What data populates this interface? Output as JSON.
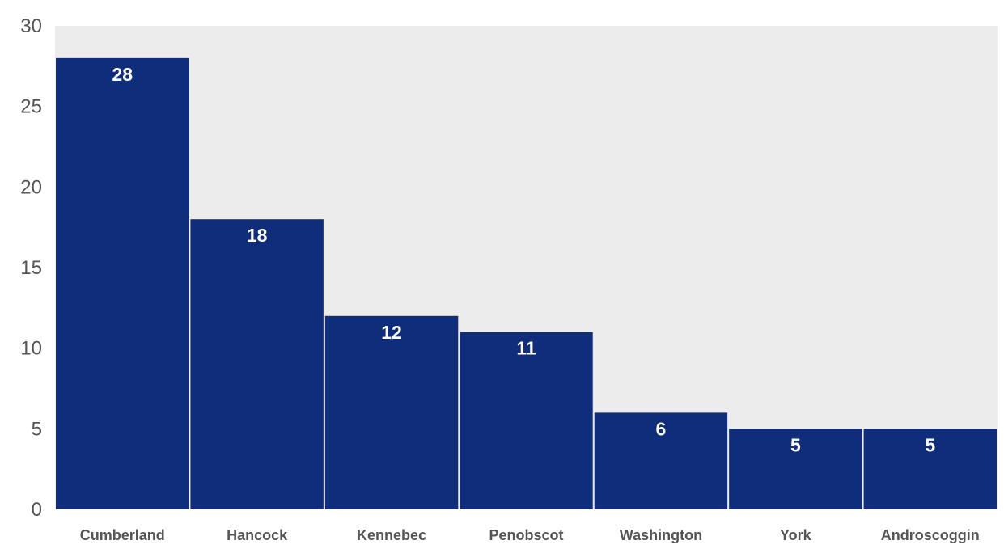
{
  "chart_data": {
    "type": "bar",
    "title": "",
    "xlabel": "",
    "ylabel": "",
    "categories": [
      "Cumberland",
      "Hancock",
      "Kennebec",
      "Penobscot",
      "Washington",
      "York",
      "Androscoggin"
    ],
    "values": [
      28,
      18,
      12,
      11,
      6,
      5,
      5
    ],
    "data_labels": [
      "28",
      "18",
      "12",
      "11",
      "6",
      "5",
      "5"
    ],
    "ylim": [
      0,
      30
    ],
    "yticks": [
      0,
      5,
      10,
      15,
      20,
      25,
      30
    ],
    "ytick_labels": [
      "0",
      "5",
      "10",
      "15",
      "20",
      "25",
      "30"
    ],
    "grid": false,
    "legend": "none",
    "colors": {
      "bar": "#0f2d7a",
      "plot_background": "#ececec",
      "page_background": "#ffffff",
      "tick_text": "#555555",
      "data_label_text": "#ffffff"
    }
  }
}
